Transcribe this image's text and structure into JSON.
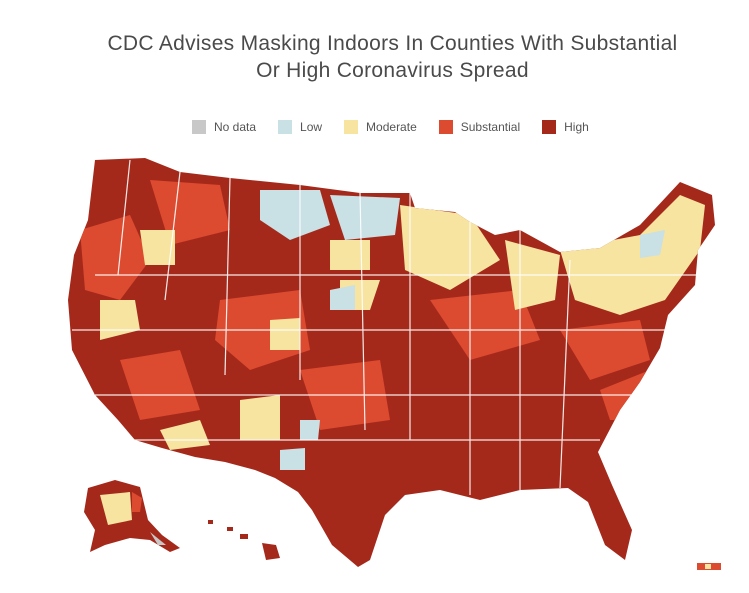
{
  "title": {
    "line1": "CDC Advises Masking Indoors In Counties With Substantial",
    "line2": "Or High Coronavirus Spread"
  },
  "legend": [
    {
      "label": "No data",
      "color": "#c8c8c8"
    },
    {
      "label": "Low",
      "color": "#c9e0e4"
    },
    {
      "label": "Moderate",
      "color": "#f6e4a0"
    },
    {
      "label": "Substantial",
      "color": "#dc4a30"
    },
    {
      "label": "High",
      "color": "#a5291b"
    }
  ],
  "map": {
    "regions": [
      "contiguous-us",
      "alaska",
      "hawaii",
      "puerto-rico"
    ],
    "dominant_level": "High"
  }
}
